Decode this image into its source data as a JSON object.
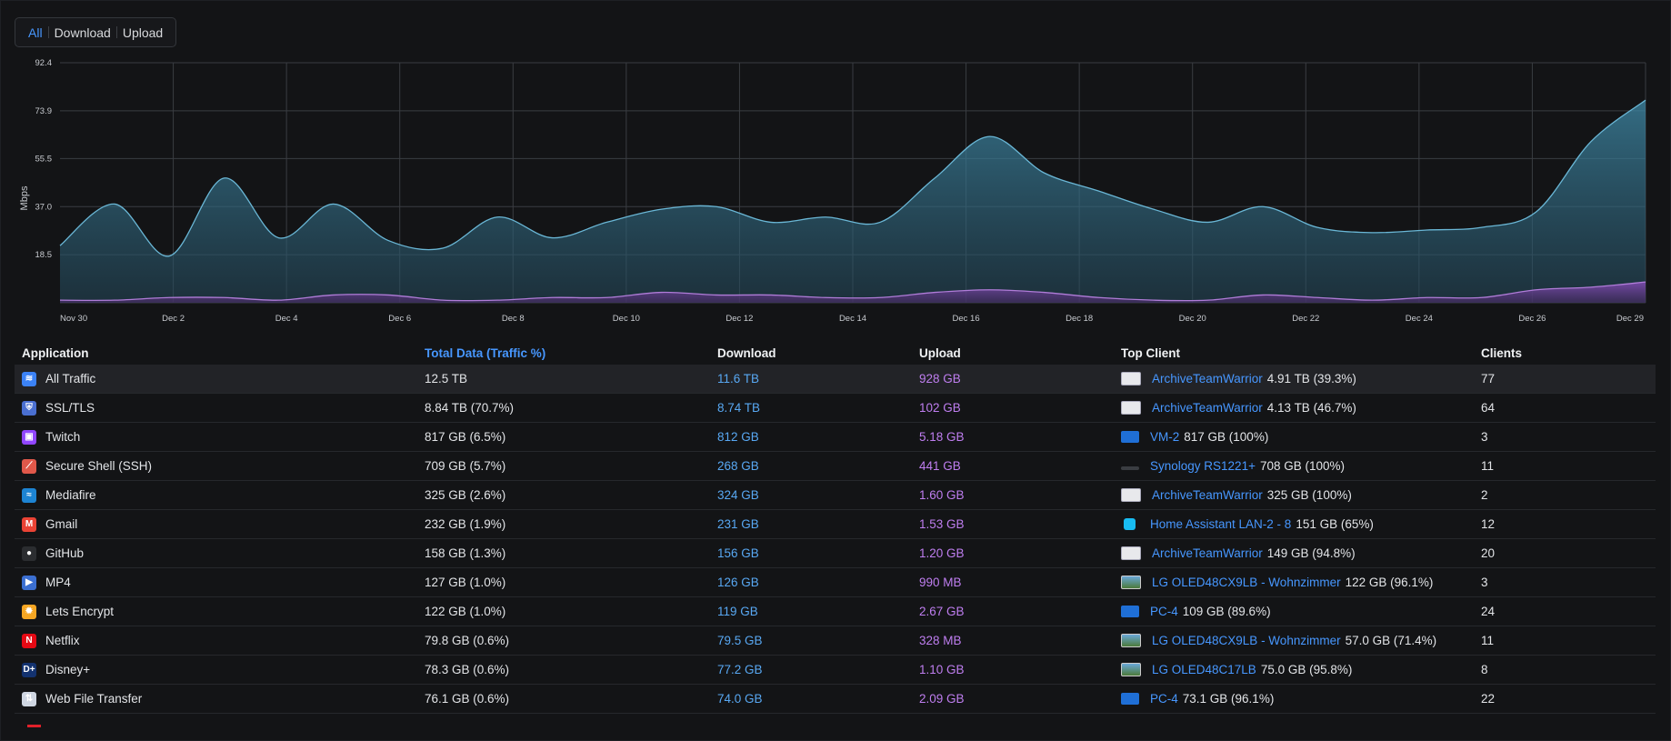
{
  "filters": {
    "items": [
      {
        "label": "All",
        "active": true
      },
      {
        "label": "Download",
        "active": false
      },
      {
        "label": "Upload",
        "active": false
      }
    ]
  },
  "chart_data": {
    "type": "area",
    "ylabel": "Mbps",
    "yticks": [
      "92.4",
      "73.9",
      "55.5",
      "37.0",
      "18.5"
    ],
    "ylim": [
      0,
      92.4
    ],
    "grid": true,
    "x_ticks": [
      "Nov 30",
      "Dec 2",
      "Dec 4",
      "Dec 6",
      "Dec 8",
      "Dec 10",
      "Dec 12",
      "Dec 14",
      "Dec 16",
      "Dec 18",
      "Dec 20",
      "Dec 22",
      "Dec 24",
      "Dec 26",
      "Dec 29"
    ],
    "x": [
      "Nov 30",
      "Dec 1",
      "Dec 2",
      "Dec 3",
      "Dec 4",
      "Dec 5",
      "Dec 6",
      "Dec 7",
      "Dec 8",
      "Dec 9",
      "Dec 10",
      "Dec 11",
      "Dec 12",
      "Dec 13",
      "Dec 14",
      "Dec 15",
      "Dec 16",
      "Dec 17",
      "Dec 18",
      "Dec 19",
      "Dec 20",
      "Dec 21",
      "Dec 22",
      "Dec 23",
      "Dec 24",
      "Dec 25",
      "Dec 26",
      "Dec 27",
      "Dec 28",
      "Dec 29"
    ],
    "series": [
      {
        "values": [
          22,
          38,
          18,
          48,
          25,
          38,
          24,
          21,
          33,
          25,
          31,
          36,
          37,
          31,
          33,
          31,
          48,
          64,
          50,
          43,
          36,
          31,
          37,
          29,
          27,
          28,
          29,
          35,
          62,
          78
        ],
        "color": "#6ab7d6"
      },
      {
        "values": [
          1,
          1,
          2,
          2,
          1,
          3,
          3,
          1,
          1,
          2,
          2,
          4,
          3,
          3,
          2,
          2,
          4,
          5,
          4,
          2,
          1,
          1,
          3,
          2,
          1,
          2,
          2,
          5,
          6,
          8
        ],
        "color": "#b07cd8"
      }
    ]
  },
  "table": {
    "headers": {
      "application": "Application",
      "total": "Total Data (Traffic %)",
      "download": "Download",
      "upload": "Upload",
      "top_client": "Top Client",
      "clients": "Clients"
    },
    "rows": [
      {
        "app": "All Traffic",
        "icon": "layers-icon",
        "icon_color": "#3b82f6",
        "total": "12.5 TB",
        "download": "11.6 TB",
        "upload": "928 GB",
        "client": "ArchiveTeamWarrior",
        "client_extra": "4.91 TB (39.3%)",
        "client_icon": "server-icon",
        "clients": "77",
        "highlight": true
      },
      {
        "app": "SSL/TLS",
        "icon": "shield-lock-icon",
        "icon_color": "#4a6fd1",
        "total": "8.84 TB (70.7%)",
        "download": "8.74 TB",
        "upload": "102 GB",
        "client": "ArchiveTeamWarrior",
        "client_extra": "4.13 TB (46.7%)",
        "client_icon": "server-icon",
        "clients": "64"
      },
      {
        "app": "Twitch",
        "icon": "twitch-icon",
        "icon_color": "#9146ff",
        "total": "817 GB (6.5%)",
        "download": "812 GB",
        "upload": "5.18 GB",
        "client": "VM-2",
        "client_extra": "817 GB (100%)",
        "client_icon": "desktop-icon",
        "clients": "3"
      },
      {
        "app": "Secure Shell (SSH)",
        "icon": "ssh-icon",
        "icon_color": "#e0584a",
        "total": "709 GB (5.7%)",
        "download": "268 GB",
        "upload": "441 GB",
        "client": "Synology RS1221+",
        "client_extra": "708 GB (100%)",
        "client_icon": "rack-icon",
        "clients": "11"
      },
      {
        "app": "Mediafire",
        "icon": "mediafire-icon",
        "icon_color": "#1d84d3",
        "total": "325 GB (2.6%)",
        "download": "324 GB",
        "upload": "1.60 GB",
        "client": "ArchiveTeamWarrior",
        "client_extra": "325 GB (100%)",
        "client_icon": "server-icon",
        "clients": "2"
      },
      {
        "app": "Gmail",
        "icon": "gmail-icon",
        "icon_color": "#ea4335",
        "total": "232 GB (1.9%)",
        "download": "231 GB",
        "upload": "1.53 GB",
        "client": "Home Assistant LAN-2 - 8",
        "client_extra": "151 GB (65%)",
        "client_icon": "home-assistant-icon",
        "clients": "12"
      },
      {
        "app": "GitHub",
        "icon": "github-icon",
        "icon_color": "#2b2d30",
        "total": "158 GB (1.3%)",
        "download": "156 GB",
        "upload": "1.20 GB",
        "client": "ArchiveTeamWarrior",
        "client_extra": "149 GB (94.8%)",
        "client_icon": "server-icon",
        "clients": "20"
      },
      {
        "app": "MP4",
        "icon": "video-file-icon",
        "icon_color": "#3b6fd1",
        "total": "127 GB (1.0%)",
        "download": "126 GB",
        "upload": "990 MB",
        "client": "LG OLED48CX9LB - Wohnzimmer",
        "client_extra": "122 GB (96.1%)",
        "client_icon": "tv-icon",
        "clients": "3"
      },
      {
        "app": "Lets Encrypt",
        "icon": "lets-encrypt-icon",
        "icon_color": "#f5a623",
        "total": "122 GB (1.0%)",
        "download": "119 GB",
        "upload": "2.67 GB",
        "client": "PC-4",
        "client_extra": "109 GB (89.6%)",
        "client_icon": "desktop-icon",
        "clients": "24"
      },
      {
        "app": "Netflix",
        "icon": "netflix-icon",
        "icon_color": "#e50914",
        "total": "79.8 GB (0.6%)",
        "download": "79.5 GB",
        "upload": "328 MB",
        "client": "LG OLED48CX9LB - Wohnzimmer",
        "client_extra": "57.0 GB (71.4%)",
        "client_icon": "tv-icon",
        "clients": "11"
      },
      {
        "app": "Disney+",
        "icon": "disney-plus-icon",
        "icon_color": "#13326f",
        "total": "78.3 GB (0.6%)",
        "download": "77.2 GB",
        "upload": "1.10 GB",
        "client": "LG OLED48C17LB",
        "client_extra": "75.0 GB (95.8%)",
        "client_icon": "tv-icon",
        "clients": "8"
      },
      {
        "app": "Web File Transfer",
        "icon": "file-transfer-icon",
        "icon_color": "#cfd6e2",
        "total": "76.1 GB (0.6%)",
        "download": "74.0 GB",
        "upload": "2.09 GB",
        "client": "PC-4",
        "client_extra": "73.1 GB (96.1%)",
        "client_icon": "desktop-icon",
        "clients": "22"
      }
    ]
  }
}
